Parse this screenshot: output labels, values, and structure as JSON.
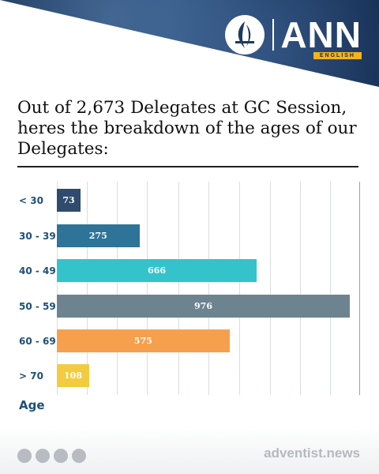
{
  "brand": {
    "name": "ANN",
    "sub": "ENGLISH"
  },
  "headline": "Out of 2,673 Delegates at GC Session, heres the breakdown of the ages of our Delegates:",
  "chart_data": {
    "type": "bar",
    "orientation": "horizontal",
    "title": "",
    "xlabel": "Age",
    "categories": [
      "< 30",
      "30 - 39",
      "40 - 49",
      "50 - 59",
      "60 - 69",
      "> 70"
    ],
    "values": [
      73,
      275,
      666,
      976,
      575,
      108
    ],
    "colors": [
      "#2f4b6e",
      "#2e7398",
      "#35c3cb",
      "#6d838f",
      "#f6a04d",
      "#f2cc3e"
    ],
    "xlim": [
      0,
      1000
    ],
    "grid": true
  },
  "footer": {
    "website": "adventist.news",
    "social_icons": [
      "facebook-icon",
      "instagram-icon",
      "twitter-icon",
      "youtube-icon"
    ]
  }
}
